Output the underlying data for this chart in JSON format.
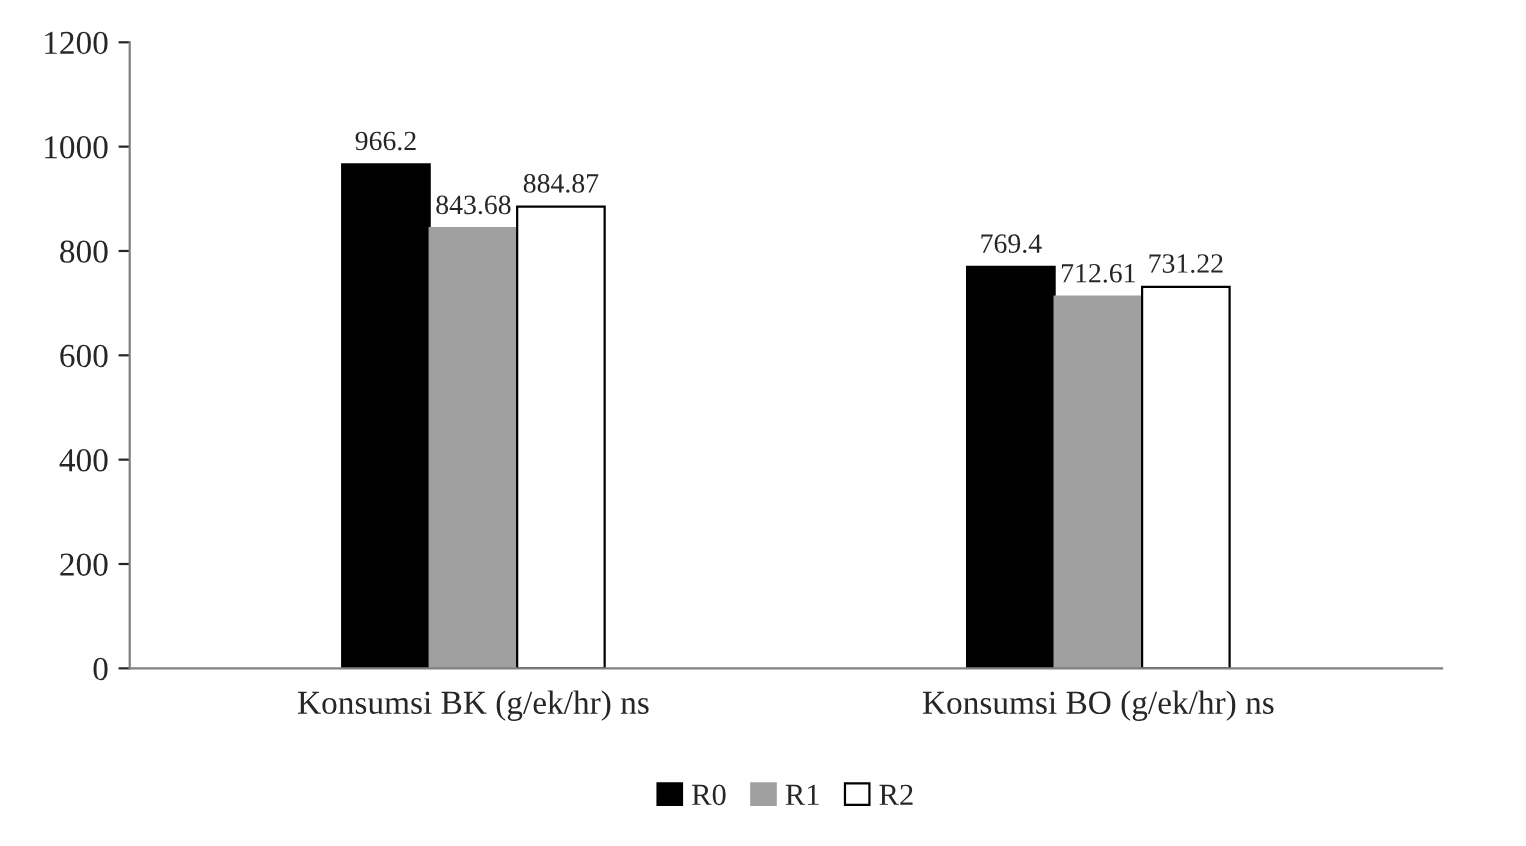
{
  "chart_data": {
    "type": "bar",
    "categories": [
      "Konsumsi BK (g/ek/hr) ns",
      "Konsumsi BO (g/ek/hr) ns"
    ],
    "series": [
      {
        "name": "R0",
        "color": "#000000",
        "values": [
          966.2,
          769.4
        ]
      },
      {
        "name": "R1",
        "color": "#a0a0a0",
        "values": [
          843.68,
          712.61
        ]
      },
      {
        "name": "R2",
        "color": "#ffffff",
        "values": [
          884.87,
          731.22
        ]
      }
    ],
    "ylim": [
      0,
      1200
    ],
    "yticks": [
      0,
      200,
      400,
      600,
      800,
      1000,
      1200
    ],
    "grid": false,
    "legend": "bottom",
    "data_labels": true
  }
}
